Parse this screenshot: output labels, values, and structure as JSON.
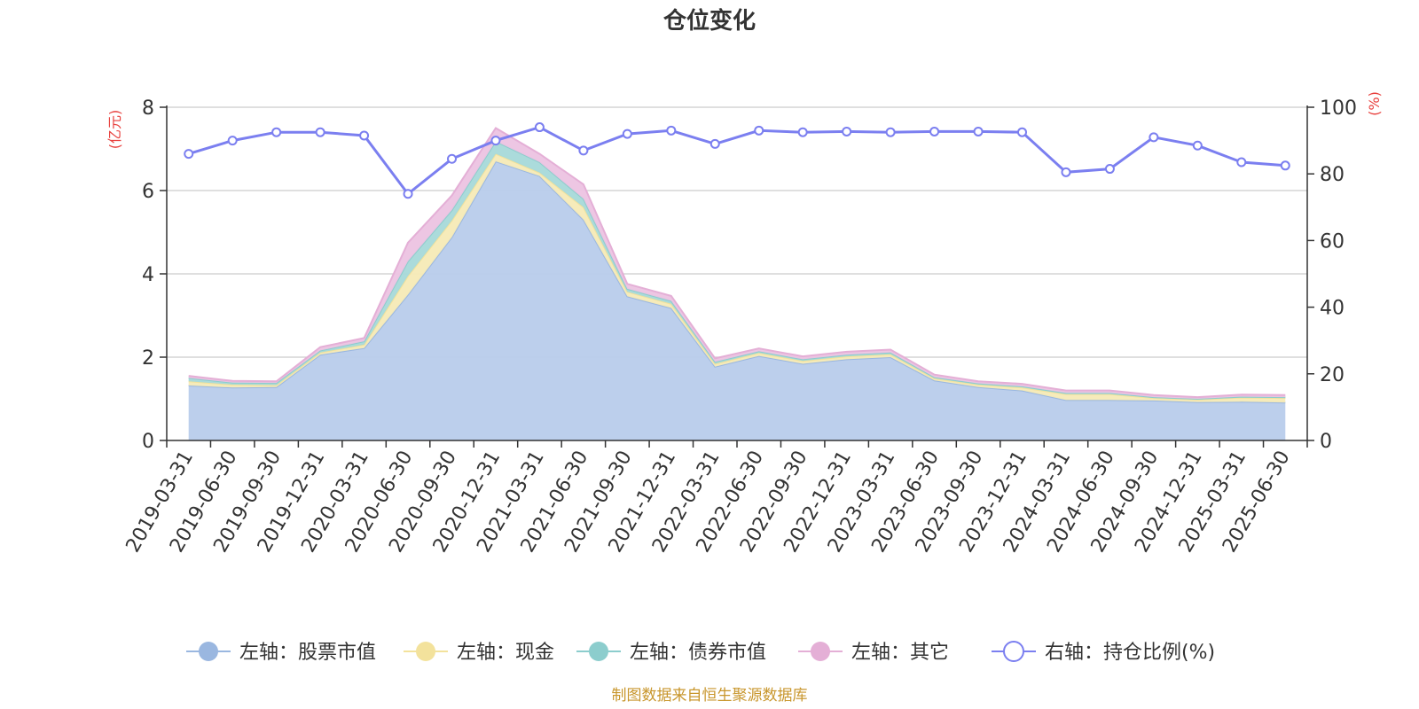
{
  "chart_data": {
    "type": "area",
    "title": "仓位变化",
    "left_unit": "(亿元)",
    "right_unit": "(%)",
    "source": "制图数据来自恒生聚源数据库",
    "categories": [
      "2019-03-31",
      "2019-06-30",
      "2019-09-30",
      "2019-12-31",
      "2020-03-31",
      "2020-06-30",
      "2020-09-30",
      "2020-12-31",
      "2021-03-31",
      "2021-06-30",
      "2021-09-30",
      "2021-12-31",
      "2022-03-31",
      "2022-06-30",
      "2022-09-30",
      "2022-12-31",
      "2023-03-31",
      "2023-06-30",
      "2023-09-30",
      "2023-12-31",
      "2024-03-31",
      "2024-06-30",
      "2024-09-30",
      "2024-12-31",
      "2025-03-31",
      "2025-06-30"
    ],
    "y_left": {
      "min": 0,
      "max": 8,
      "ticks": [
        0,
        2,
        4,
        6,
        8
      ]
    },
    "y_right": {
      "min": 0,
      "max": 100,
      "ticks": [
        0,
        20,
        40,
        60,
        80,
        100
      ]
    },
    "grid": true,
    "legend_position": "bottom",
    "series": [
      {
        "name": "左轴：股票市值",
        "axis": "left",
        "stack": true,
        "color": "#9ab7e0",
        "fill": "#b8cceb",
        "values": [
          1.32,
          1.27,
          1.28,
          2.06,
          2.22,
          3.5,
          4.88,
          6.7,
          6.35,
          5.3,
          3.46,
          3.18,
          1.77,
          2.03,
          1.84,
          1.95,
          2.0,
          1.44,
          1.28,
          1.2,
          0.97,
          0.97,
          0.96,
          0.92,
          0.93,
          0.91
        ]
      },
      {
        "name": "左轴：现金",
        "axis": "left",
        "stack": true,
        "color": "#f3e29c",
        "fill": "#f6eab6",
        "values": [
          0.1,
          0.07,
          0.05,
          0.05,
          0.08,
          0.45,
          0.4,
          0.18,
          0.08,
          0.3,
          0.11,
          0.1,
          0.07,
          0.07,
          0.07,
          0.07,
          0.07,
          0.05,
          0.06,
          0.07,
          0.14,
          0.14,
          0.06,
          0.06,
          0.1,
          0.11
        ]
      },
      {
        "name": "左轴：债券市值",
        "axis": "left",
        "stack": true,
        "color": "#8ccdcd",
        "fill": "#a7d9d9",
        "values": [
          0.08,
          0.05,
          0.05,
          0.05,
          0.08,
          0.35,
          0.25,
          0.3,
          0.25,
          0.2,
          0.07,
          0.07,
          0.05,
          0.04,
          0.04,
          0.04,
          0.04,
          0.03,
          0.03,
          0.03,
          0.03,
          0.03,
          0.02,
          0.02,
          0.02,
          0.02
        ]
      },
      {
        "name": "左轴：其它",
        "axis": "left",
        "stack": true,
        "color": "#e4afd6",
        "fill": "#ecc3e1",
        "values": [
          0.05,
          0.04,
          0.04,
          0.08,
          0.08,
          0.45,
          0.35,
          0.32,
          0.2,
          0.35,
          0.12,
          0.12,
          0.08,
          0.07,
          0.07,
          0.07,
          0.07,
          0.06,
          0.05,
          0.06,
          0.06,
          0.06,
          0.05,
          0.04,
          0.05,
          0.05
        ]
      },
      {
        "name": "右轴：持仓比例(%)",
        "axis": "right",
        "stack": false,
        "color": "#7b7ff0",
        "fill": "none",
        "values": [
          86,
          90,
          92.5,
          92.5,
          91.5,
          74,
          84.5,
          90,
          94,
          87,
          92,
          93,
          89,
          93,
          92.5,
          92.7,
          92.5,
          92.7,
          92.7,
          92.5,
          80.5,
          81.5,
          91,
          88.5,
          83.5,
          82.5
        ]
      }
    ]
  }
}
